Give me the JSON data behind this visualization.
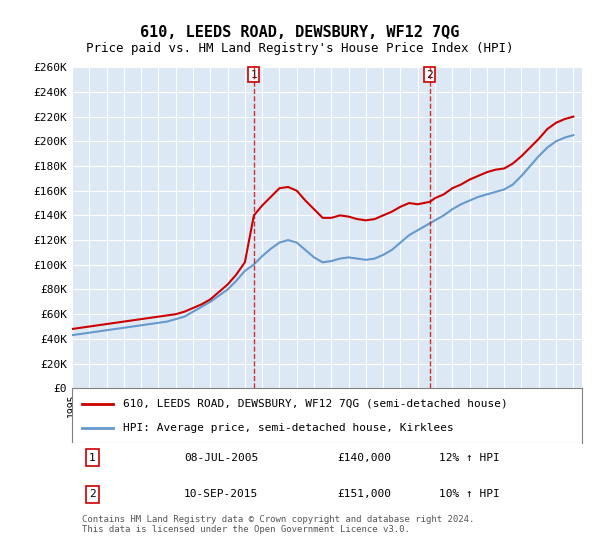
{
  "title": "610, LEEDS ROAD, DEWSBURY, WF12 7QG",
  "subtitle": "Price paid vs. HM Land Registry's House Price Index (HPI)",
  "ylabel": "",
  "background_color": "#dce9f5",
  "plot_background": "#dce9f5",
  "red_color": "#cc0000",
  "blue_color": "#6699cc",
  "marker1_date": 2005.52,
  "marker2_date": 2015.7,
  "marker1_label": "1",
  "marker2_label": "2",
  "legend_line1": "610, LEEDS ROAD, DEWSBURY, WF12 7QG (semi-detached house)",
  "legend_line2": "HPI: Average price, semi-detached house, Kirklees",
  "table_data": [
    [
      "1",
      "08-JUL-2005",
      "£140,000",
      "12% ↑ HPI"
    ],
    [
      "2",
      "10-SEP-2015",
      "£151,000",
      "10% ↑ HPI"
    ]
  ],
  "footnote": "Contains HM Land Registry data © Crown copyright and database right 2024.\nThis data is licensed under the Open Government Licence v3.0.",
  "ylim": [
    0,
    260000
  ],
  "yticks": [
    0,
    20000,
    40000,
    60000,
    80000,
    100000,
    120000,
    140000,
    160000,
    180000,
    200000,
    220000,
    240000,
    260000
  ],
  "ytick_labels": [
    "£0",
    "£20K",
    "£40K",
    "£60K",
    "£80K",
    "£100K",
    "£120K",
    "£140K",
    "£160K",
    "£180K",
    "£200K",
    "£220K",
    "£240K",
    "£260K"
  ],
  "red_x": [
    1995.0,
    1995.5,
    1996.0,
    1996.5,
    1997.0,
    1997.5,
    1998.0,
    1998.5,
    1999.0,
    1999.5,
    2000.0,
    2000.5,
    2001.0,
    2001.5,
    2002.0,
    2002.5,
    2003.0,
    2003.5,
    2004.0,
    2004.5,
    2005.0,
    2005.52,
    2006.0,
    2006.5,
    2007.0,
    2007.5,
    2008.0,
    2008.5,
    2009.0,
    2009.5,
    2010.0,
    2010.5,
    2011.0,
    2011.5,
    2012.0,
    2012.5,
    2013.0,
    2013.5,
    2014.0,
    2014.5,
    2015.0,
    2015.7,
    2016.0,
    2016.5,
    2017.0,
    2017.5,
    2018.0,
    2018.5,
    2019.0,
    2019.5,
    2020.0,
    2020.5,
    2021.0,
    2021.5,
    2022.0,
    2022.5,
    2023.0,
    2023.5,
    2024.0
  ],
  "red_y": [
    48000,
    49000,
    50000,
    51000,
    52000,
    53000,
    54000,
    55000,
    56000,
    57000,
    58000,
    59000,
    60000,
    62000,
    65000,
    68000,
    72000,
    78000,
    84000,
    92000,
    102000,
    140000,
    148000,
    155000,
    162000,
    163000,
    160000,
    152000,
    145000,
    138000,
    138000,
    140000,
    139000,
    137000,
    136000,
    137000,
    140000,
    143000,
    147000,
    150000,
    149000,
    151000,
    154000,
    157000,
    162000,
    165000,
    169000,
    172000,
    175000,
    177000,
    178000,
    182000,
    188000,
    195000,
    202000,
    210000,
    215000,
    218000,
    220000
  ],
  "blue_x": [
    1995.0,
    1995.5,
    1996.0,
    1996.5,
    1997.0,
    1997.5,
    1998.0,
    1998.5,
    1999.0,
    1999.5,
    2000.0,
    2000.5,
    2001.0,
    2001.5,
    2002.0,
    2002.5,
    2003.0,
    2003.5,
    2004.0,
    2004.5,
    2005.0,
    2005.5,
    2006.0,
    2006.5,
    2007.0,
    2007.5,
    2008.0,
    2008.5,
    2009.0,
    2009.5,
    2010.0,
    2010.5,
    2011.0,
    2011.5,
    2012.0,
    2012.5,
    2013.0,
    2013.5,
    2014.0,
    2014.5,
    2015.0,
    2015.5,
    2016.0,
    2016.5,
    2017.0,
    2017.5,
    2018.0,
    2018.5,
    2019.0,
    2019.5,
    2020.0,
    2020.5,
    2021.0,
    2021.5,
    2022.0,
    2022.5,
    2023.0,
    2023.5,
    2024.0
  ],
  "blue_y": [
    43000,
    44000,
    45000,
    46000,
    47000,
    48000,
    49000,
    50000,
    51000,
    52000,
    53000,
    54000,
    56000,
    58000,
    62000,
    66000,
    70000,
    75000,
    80000,
    87000,
    95000,
    100000,
    107000,
    113000,
    118000,
    120000,
    118000,
    112000,
    106000,
    102000,
    103000,
    105000,
    106000,
    105000,
    104000,
    105000,
    108000,
    112000,
    118000,
    124000,
    128000,
    132000,
    136000,
    140000,
    145000,
    149000,
    152000,
    155000,
    157000,
    159000,
    161000,
    165000,
    172000,
    180000,
    188000,
    195000,
    200000,
    203000,
    205000
  ]
}
